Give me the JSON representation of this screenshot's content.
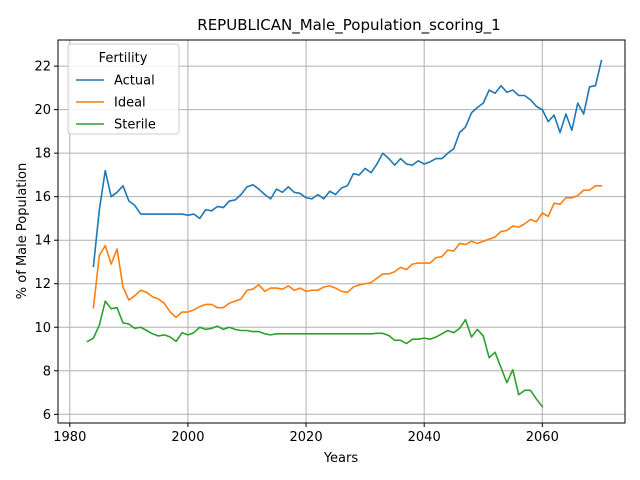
{
  "chart_data": {
    "type": "line",
    "title": "REPUBLICAN_Male_Population_scoring_1",
    "xlabel": "Years",
    "ylabel": "% of Male Population",
    "xlim": [
      1978,
      2074
    ],
    "ylim": [
      5.6,
      23.2
    ],
    "xticks": [
      1980,
      2000,
      2020,
      2040,
      2060
    ],
    "yticks": [
      6,
      8,
      10,
      12,
      14,
      16,
      18,
      20,
      22
    ],
    "grid": true,
    "legend": {
      "title": "Fertility",
      "placement": "top-left"
    },
    "series": [
      {
        "name": "Actual",
        "color": "#1f77b4",
        "points": [
          [
            1984,
            12.8
          ],
          [
            1985,
            15.4
          ],
          [
            1986,
            17.2
          ],
          [
            1987,
            16.0
          ],
          [
            1988,
            16.2
          ],
          [
            1989,
            16.5
          ],
          [
            1990,
            15.8
          ],
          [
            1991,
            15.6
          ],
          [
            1992,
            15.2
          ],
          [
            1993,
            15.2
          ],
          [
            1994,
            15.2
          ],
          [
            1995,
            15.2
          ],
          [
            1996,
            15.2
          ],
          [
            1997,
            15.2
          ],
          [
            1998,
            15.2
          ],
          [
            1999,
            15.2
          ],
          [
            2000,
            15.15
          ],
          [
            2001,
            15.2
          ],
          [
            2002,
            15.0
          ],
          [
            2003,
            15.4
          ],
          [
            2004,
            15.35
          ],
          [
            2005,
            15.55
          ],
          [
            2006,
            15.5
          ],
          [
            2007,
            15.8
          ],
          [
            2008,
            15.85
          ],
          [
            2009,
            16.1
          ],
          [
            2010,
            16.45
          ],
          [
            2011,
            16.55
          ],
          [
            2012,
            16.35
          ],
          [
            2013,
            16.1
          ],
          [
            2014,
            15.9
          ],
          [
            2015,
            16.35
          ],
          [
            2016,
            16.2
          ],
          [
            2017,
            16.45
          ],
          [
            2018,
            16.2
          ],
          [
            2019,
            16.15
          ],
          [
            2020,
            15.95
          ],
          [
            2021,
            15.9
          ],
          [
            2022,
            16.1
          ],
          [
            2023,
            15.9
          ],
          [
            2024,
            16.25
          ],
          [
            2025,
            16.1
          ],
          [
            2026,
            16.4
          ],
          [
            2027,
            16.5
          ],
          [
            2028,
            17.05
          ],
          [
            2029,
            17.0
          ],
          [
            2030,
            17.3
          ],
          [
            2031,
            17.1
          ],
          [
            2032,
            17.5
          ],
          [
            2033,
            18.0
          ],
          [
            2034,
            17.75
          ],
          [
            2035,
            17.45
          ],
          [
            2036,
            17.75
          ],
          [
            2037,
            17.5
          ],
          [
            2038,
            17.45
          ],
          [
            2039,
            17.65
          ],
          [
            2040,
            17.5
          ],
          [
            2041,
            17.6
          ],
          [
            2042,
            17.75
          ],
          [
            2043,
            17.75
          ],
          [
            2044,
            18.0
          ],
          [
            2045,
            18.2
          ],
          [
            2046,
            18.95
          ],
          [
            2047,
            19.2
          ],
          [
            2048,
            19.85
          ],
          [
            2049,
            20.1
          ],
          [
            2050,
            20.3
          ],
          [
            2051,
            20.9
          ],
          [
            2052,
            20.75
          ],
          [
            2053,
            21.1
          ],
          [
            2054,
            20.8
          ],
          [
            2055,
            20.9
          ],
          [
            2056,
            20.65
          ],
          [
            2057,
            20.65
          ],
          [
            2058,
            20.45
          ],
          [
            2059,
            20.15
          ],
          [
            2060,
            20.0
          ],
          [
            2061,
            19.45
          ],
          [
            2062,
            19.75
          ],
          [
            2063,
            18.95
          ],
          [
            2064,
            19.8
          ],
          [
            2065,
            19.05
          ],
          [
            2066,
            20.3
          ],
          [
            2067,
            19.8
          ],
          [
            2068,
            21.05
          ],
          [
            2069,
            21.1
          ],
          [
            2070,
            22.25
          ]
        ]
      },
      {
        "name": "Ideal",
        "color": "#ff7f0e",
        "points": [
          [
            1984,
            10.9
          ],
          [
            1985,
            13.3
          ],
          [
            1986,
            13.75
          ],
          [
            1987,
            12.9
          ],
          [
            1988,
            13.6
          ],
          [
            1989,
            11.85
          ],
          [
            1990,
            11.25
          ],
          [
            1991,
            11.45
          ],
          [
            1992,
            11.7
          ],
          [
            1993,
            11.6
          ],
          [
            1994,
            11.4
          ],
          [
            1995,
            11.3
          ],
          [
            1996,
            11.1
          ],
          [
            1997,
            10.7
          ],
          [
            1998,
            10.45
          ],
          [
            1999,
            10.7
          ],
          [
            2000,
            10.7
          ],
          [
            2001,
            10.8
          ],
          [
            2002,
            10.95
          ],
          [
            2003,
            11.05
          ],
          [
            2004,
            11.05
          ],
          [
            2005,
            10.9
          ],
          [
            2006,
            10.9
          ],
          [
            2007,
            11.1
          ],
          [
            2008,
            11.2
          ],
          [
            2009,
            11.3
          ],
          [
            2010,
            11.7
          ],
          [
            2011,
            11.75
          ],
          [
            2012,
            11.95
          ],
          [
            2013,
            11.65
          ],
          [
            2014,
            11.8
          ],
          [
            2015,
            11.8
          ],
          [
            2016,
            11.75
          ],
          [
            2017,
            11.9
          ],
          [
            2018,
            11.7
          ],
          [
            2019,
            11.8
          ],
          [
            2020,
            11.65
          ],
          [
            2021,
            11.7
          ],
          [
            2022,
            11.7
          ],
          [
            2023,
            11.85
          ],
          [
            2024,
            11.9
          ],
          [
            2025,
            11.8
          ],
          [
            2026,
            11.65
          ],
          [
            2027,
            11.6
          ],
          [
            2028,
            11.85
          ],
          [
            2029,
            11.95
          ],
          [
            2030,
            12.0
          ],
          [
            2031,
            12.05
          ],
          [
            2032,
            12.25
          ],
          [
            2033,
            12.45
          ],
          [
            2034,
            12.45
          ],
          [
            2035,
            12.55
          ],
          [
            2036,
            12.75
          ],
          [
            2037,
            12.65
          ],
          [
            2038,
            12.9
          ],
          [
            2039,
            12.95
          ],
          [
            2040,
            12.95
          ],
          [
            2041,
            12.95
          ],
          [
            2042,
            13.2
          ],
          [
            2043,
            13.25
          ],
          [
            2044,
            13.55
          ],
          [
            2045,
            13.5
          ],
          [
            2046,
            13.85
          ],
          [
            2047,
            13.8
          ],
          [
            2048,
            13.95
          ],
          [
            2049,
            13.85
          ],
          [
            2050,
            13.95
          ],
          [
            2051,
            14.05
          ],
          [
            2052,
            14.15
          ],
          [
            2053,
            14.4
          ],
          [
            2054,
            14.45
          ],
          [
            2055,
            14.65
          ],
          [
            2056,
            14.6
          ],
          [
            2057,
            14.75
          ],
          [
            2058,
            14.95
          ],
          [
            2059,
            14.85
          ],
          [
            2060,
            15.25
          ],
          [
            2061,
            15.1
          ],
          [
            2062,
            15.7
          ],
          [
            2063,
            15.65
          ],
          [
            2064,
            15.95
          ],
          [
            2065,
            15.95
          ],
          [
            2066,
            16.05
          ],
          [
            2067,
            16.3
          ],
          [
            2068,
            16.3
          ],
          [
            2069,
            16.5
          ],
          [
            2070,
            16.5
          ]
        ]
      },
      {
        "name": "Sterile",
        "color": "#2ca02c",
        "points": [
          [
            1983,
            9.35
          ],
          [
            1984,
            9.5
          ],
          [
            1985,
            10.1
          ],
          [
            1986,
            11.2
          ],
          [
            1987,
            10.85
          ],
          [
            1988,
            10.9
          ],
          [
            1989,
            10.2
          ],
          [
            1990,
            10.15
          ],
          [
            1991,
            9.95
          ],
          [
            1992,
            10.0
          ],
          [
            1993,
            9.85
          ],
          [
            1994,
            9.7
          ],
          [
            1995,
            9.6
          ],
          [
            1996,
            9.65
          ],
          [
            1997,
            9.55
          ],
          [
            1998,
            9.35
          ],
          [
            1999,
            9.75
          ],
          [
            2000,
            9.65
          ],
          [
            2001,
            9.75
          ],
          [
            2002,
            10.0
          ],
          [
            2003,
            9.9
          ],
          [
            2004,
            9.95
          ],
          [
            2005,
            10.05
          ],
          [
            2006,
            9.9
          ],
          [
            2007,
            10.0
          ],
          [
            2008,
            9.9
          ],
          [
            2009,
            9.85
          ],
          [
            2010,
            9.85
          ],
          [
            2011,
            9.8
          ],
          [
            2012,
            9.8
          ],
          [
            2013,
            9.7
          ],
          [
            2014,
            9.65
          ],
          [
            2015,
            9.7
          ],
          [
            2016,
            9.7
          ],
          [
            2017,
            9.7
          ],
          [
            2018,
            9.7
          ],
          [
            2019,
            9.7
          ],
          [
            2020,
            9.7
          ],
          [
            2021,
            9.7
          ],
          [
            2022,
            9.7
          ],
          [
            2023,
            9.7
          ],
          [
            2024,
            9.7
          ],
          [
            2025,
            9.7
          ],
          [
            2026,
            9.7
          ],
          [
            2027,
            9.7
          ],
          [
            2028,
            9.7
          ],
          [
            2029,
            9.7
          ],
          [
            2030,
            9.7
          ],
          [
            2031,
            9.7
          ],
          [
            2032,
            9.72
          ],
          [
            2033,
            9.72
          ],
          [
            2034,
            9.62
          ],
          [
            2035,
            9.4
          ],
          [
            2036,
            9.4
          ],
          [
            2037,
            9.25
          ],
          [
            2038,
            9.45
          ],
          [
            2039,
            9.45
          ],
          [
            2040,
            9.5
          ],
          [
            2041,
            9.45
          ],
          [
            2042,
            9.55
          ],
          [
            2043,
            9.7
          ],
          [
            2044,
            9.85
          ],
          [
            2045,
            9.75
          ],
          [
            2046,
            9.95
          ],
          [
            2047,
            10.35
          ],
          [
            2048,
            9.55
          ],
          [
            2049,
            9.9
          ],
          [
            2050,
            9.6
          ],
          [
            2051,
            8.6
          ],
          [
            2052,
            8.85
          ],
          [
            2053,
            8.15
          ],
          [
            2054,
            7.45
          ],
          [
            2055,
            8.05
          ],
          [
            2056,
            6.9
          ],
          [
            2057,
            7.1
          ],
          [
            2058,
            7.1
          ],
          [
            2059,
            6.7
          ],
          [
            2060,
            6.35
          ]
        ]
      }
    ]
  }
}
